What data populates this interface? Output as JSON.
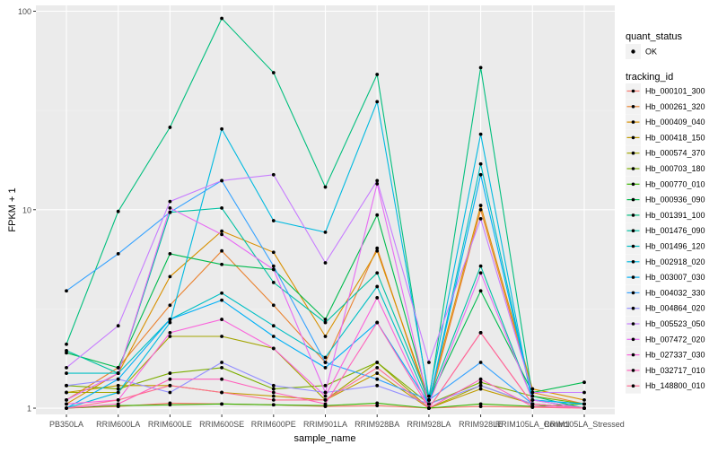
{
  "chart_data": {
    "type": "line",
    "title": "",
    "xlabel": "sample_name",
    "ylabel": "FPKM + 1",
    "y_scale": "log10",
    "ylim": [
      0.93,
      107
    ],
    "y_ticks": [
      {
        "value": 1,
        "label": "1"
      },
      {
        "value": 10,
        "label": "10"
      },
      {
        "value": 100,
        "label": "100"
      }
    ],
    "categories": [
      "PB350LA",
      "RRIM600LA",
      "RRIM600LE",
      "RRIM600SE",
      "RRIM600PE",
      "RRIM901LA",
      "RRIM928BA",
      "RRIM928LA",
      "RRIM928LE",
      "RRIM105LA_Control",
      "RRIM105LA_Stressed"
    ],
    "grid": true,
    "legend_position": "right",
    "legend": {
      "shape_title": "quant_status",
      "shape_items": [
        "OK"
      ],
      "color_title": "tracking_id"
    },
    "series": [
      {
        "name": "Hb_000101_300",
        "color": "#F8766D",
        "values": [
          1.0,
          1.02,
          1.06,
          1.05,
          1.04,
          1.02,
          1.03,
          1.0,
          1.02,
          1.01,
          1.0
        ]
      },
      {
        "name": "Hb_000261_320",
        "color": "#EA8331",
        "values": [
          1.1,
          1.6,
          3.3,
          6.2,
          3.3,
          1.7,
          6.4,
          1.05,
          10.0,
          1.2,
          1.05
        ]
      },
      {
        "name": "Hb_000409_040",
        "color": "#D89000",
        "values": [
          1.05,
          1.5,
          4.6,
          7.8,
          6.1,
          2.3,
          6.2,
          1.1,
          10.5,
          1.25,
          1.1
        ]
      },
      {
        "name": "Hb_000418_150",
        "color": "#C09B00",
        "values": [
          1.2,
          1.3,
          1.3,
          1.2,
          1.15,
          1.1,
          1.5,
          1.0,
          1.25,
          1.05,
          1.0
        ]
      },
      {
        "name": "Hb_000574_370",
        "color": "#A3A500",
        "values": [
          1.2,
          1.2,
          2.3,
          2.3,
          2.0,
          1.1,
          1.7,
          1.0,
          1.3,
          1.05,
          1.0
        ]
      },
      {
        "name": "Hb_000703_180",
        "color": "#7CAE00",
        "values": [
          1.3,
          1.25,
          1.5,
          1.6,
          1.25,
          1.3,
          1.7,
          1.05,
          1.35,
          1.15,
          1.05
        ]
      },
      {
        "name": "Hb_000770_010",
        "color": "#39B600",
        "values": [
          1.0,
          1.03,
          1.04,
          1.05,
          1.04,
          1.03,
          1.06,
          1.0,
          1.05,
          1.02,
          1.05
        ]
      },
      {
        "name": "Hb_000936_090",
        "color": "#00BB4E",
        "values": [
          1.9,
          1.6,
          6.0,
          5.3,
          5.0,
          2.8,
          9.4,
          1.1,
          3.9,
          1.2,
          1.35
        ]
      },
      {
        "name": "Hb_001391_100",
        "color": "#00BF7D",
        "values": [
          2.1,
          9.8,
          26.0,
          92.0,
          49.0,
          13.0,
          48.0,
          1.1,
          52.0,
          1.15,
          1.0
        ]
      },
      {
        "name": "Hb_001476_090",
        "color": "#00C1A3",
        "values": [
          1.95,
          1.5,
          9.7,
          10.2,
          4.3,
          2.7,
          4.8,
          1.1,
          5.2,
          1.1,
          1.0
        ]
      },
      {
        "name": "Hb_001496_120",
        "color": "#00BFC4",
        "values": [
          1.5,
          1.5,
          2.8,
          3.8,
          2.6,
          1.8,
          4.1,
          1.05,
          17.0,
          1.1,
          1.05
        ]
      },
      {
        "name": "Hb_002918_020",
        "color": "#00BAE0",
        "values": [
          1.0,
          1.2,
          2.7,
          25.5,
          8.8,
          7.7,
          35.0,
          1.15,
          24.0,
          1.05,
          1.0
        ]
      },
      {
        "name": "Hb_003007_030",
        "color": "#00B0F6",
        "values": [
          1.0,
          1.4,
          2.8,
          3.5,
          2.3,
          1.6,
          2.7,
          1.05,
          15.0,
          1.1,
          1.05
        ]
      },
      {
        "name": "Hb_004032_330",
        "color": "#35A2FF",
        "values": [
          3.9,
          6.0,
          9.7,
          14.0,
          5.2,
          1.7,
          1.4,
          1.1,
          1.7,
          1.05,
          1.0
        ]
      },
      {
        "name": "Hb_004864_020",
        "color": "#9590FF",
        "values": [
          1.3,
          1.4,
          1.2,
          1.7,
          1.3,
          1.2,
          1.3,
          1.05,
          1.3,
          1.05,
          1.0
        ]
      },
      {
        "name": "Hb_005523_050",
        "color": "#C77CFF",
        "values": [
          1.6,
          2.6,
          11.0,
          14.0,
          15.0,
          5.4,
          14.0,
          1.7,
          9.0,
          1.2,
          1.2
        ]
      },
      {
        "name": "Hb_007472_020",
        "color": "#E76BF3",
        "values": [
          1.1,
          1.5,
          10.2,
          7.5,
          5.0,
          1.2,
          13.5,
          1.05,
          4.8,
          1.1,
          1.0
        ]
      },
      {
        "name": "Hb_027337_030",
        "color": "#FA62DB",
        "values": [
          1.05,
          1.1,
          2.4,
          2.8,
          2.0,
          1.15,
          3.6,
          1.0,
          2.4,
          1.05,
          1.0
        ]
      },
      {
        "name": "Hb_032717_010",
        "color": "#FF62BC",
        "values": [
          1.0,
          1.05,
          1.4,
          1.4,
          1.2,
          1.05,
          2.7,
          1.0,
          1.4,
          1.02,
          1.0
        ]
      },
      {
        "name": "Hb_148800_010",
        "color": "#FF6C91",
        "values": [
          1.0,
          1.1,
          1.3,
          1.2,
          1.1,
          1.1,
          1.6,
          1.0,
          2.4,
          1.05,
          1.0
        ]
      }
    ]
  }
}
